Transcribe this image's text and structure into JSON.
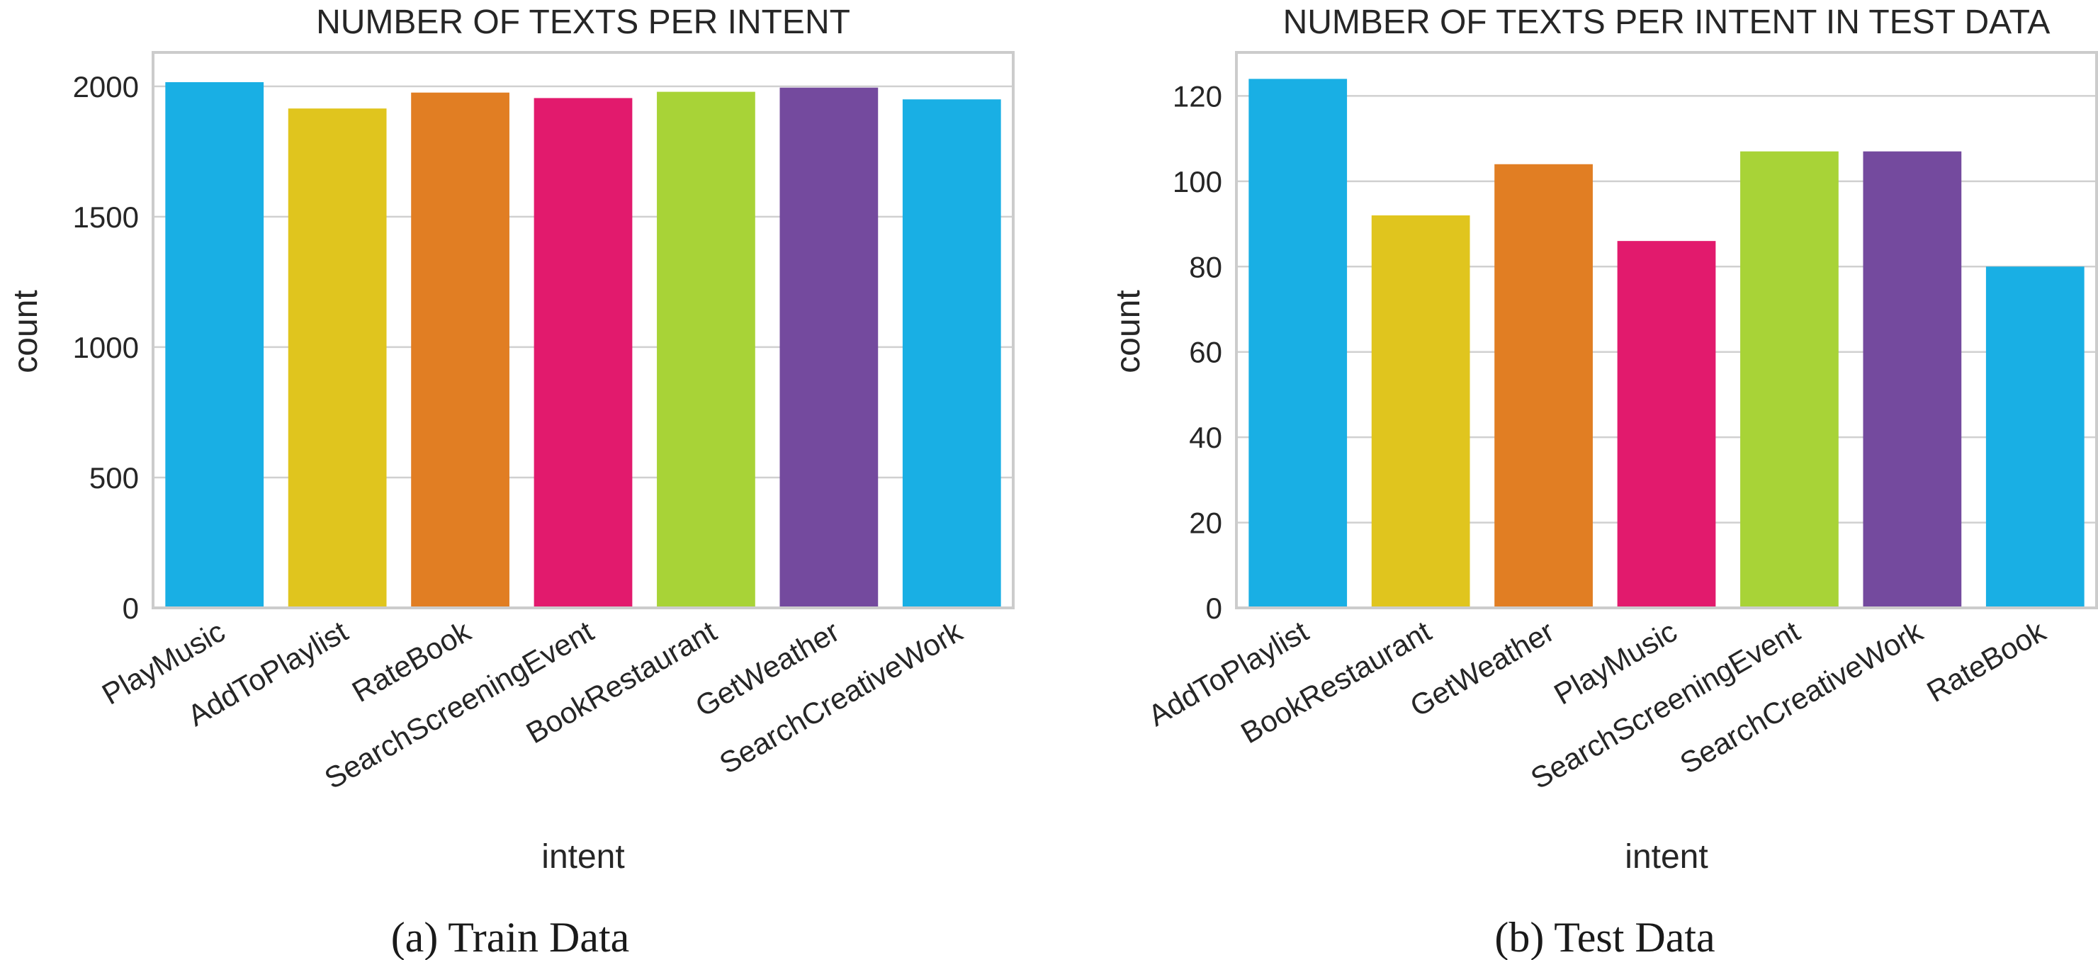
{
  "chart_data": [
    {
      "type": "bar",
      "title": "NUMBER OF TEXTS PER INTENT",
      "xlabel": "intent",
      "ylabel": "count",
      "caption": "(a) Train Data",
      "categories": [
        "PlayMusic",
        "AddToPlaylist",
        "RateBook",
        "SearchScreeningEvent",
        "BookRestaurant",
        "GetWeather",
        "SearchCreativeWork"
      ],
      "values": [
        2016,
        1915,
        1976,
        1955,
        1979,
        1995,
        1950
      ],
      "colors": [
        "#19afe4",
        "#e0c51e",
        "#e17e23",
        "#e21a6d",
        "#a8d337",
        "#744a9e",
        "#19afe4"
      ],
      "yticks": [
        0,
        500,
        1000,
        1500,
        2000
      ],
      "ylim": [
        0,
        2130
      ],
      "grid": true,
      "legend": "none"
    },
    {
      "type": "bar",
      "title": "NUMBER OF TEXTS PER INTENT IN TEST DATA",
      "xlabel": "intent",
      "ylabel": "count",
      "caption": "(b) Test Data",
      "categories": [
        "AddToPlaylist",
        "BookRestaurant",
        "GetWeather",
        "PlayMusic",
        "SearchScreeningEvent",
        "SearchCreativeWork",
        "RateBook"
      ],
      "values": [
        124,
        92,
        104,
        86,
        107,
        107,
        80
      ],
      "colors": [
        "#19afe4",
        "#e0c51e",
        "#e17e23",
        "#e21a6d",
        "#a8d337",
        "#744a9e",
        "#19afe4"
      ],
      "yticks": [
        0,
        20,
        40,
        60,
        80,
        100,
        120
      ],
      "ylim": [
        0,
        130.2
      ],
      "grid": true,
      "legend": "none"
    }
  ]
}
